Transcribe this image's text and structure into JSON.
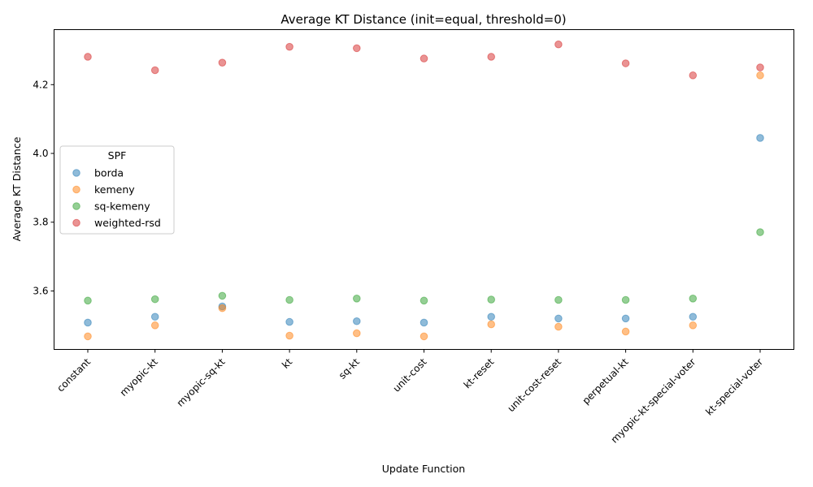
{
  "chart_data": {
    "type": "scatter",
    "title": "Average KT Distance (init=equal, threshold=0)",
    "xlabel": "Update Function",
    "ylabel": "Average KT Distance",
    "categories": [
      "constant",
      "myopic-kt",
      "myopic-sq-kt",
      "kt",
      "sq-kt",
      "unit-cost",
      "kt-reset",
      "unit-cost-reset",
      "perpetual-kt",
      "myopic-kt-special-voter",
      "kt-special-voter"
    ],
    "ylim": [
      3.43,
      4.36
    ],
    "yticks": [
      3.6,
      3.8,
      4.0,
      4.2
    ],
    "ytick_labels": [
      "3.6",
      "3.8",
      "4.0",
      "4.2"
    ],
    "legend": {
      "title": "SPF",
      "position": "center-left"
    },
    "series": [
      {
        "name": "borda",
        "color": "#1f77b4",
        "values": [
          3.508,
          3.525,
          3.555,
          3.51,
          3.512,
          3.508,
          3.525,
          3.52,
          3.52,
          3.525,
          4.045
        ]
      },
      {
        "name": "kemeny",
        "color": "#ff7f0e",
        "values": [
          3.468,
          3.5,
          3.55,
          3.47,
          3.477,
          3.468,
          3.503,
          3.496,
          3.482,
          3.5,
          4.227
        ]
      },
      {
        "name": "sq-kemeny",
        "color": "#2ca02c",
        "values": [
          3.572,
          3.576,
          3.586,
          3.574,
          3.578,
          3.572,
          3.575,
          3.574,
          3.574,
          3.578,
          3.771
        ]
      },
      {
        "name": "weighted-rsd",
        "color": "#d62728",
        "values": [
          4.281,
          4.242,
          4.264,
          4.31,
          4.306,
          4.276,
          4.281,
          4.317,
          4.262,
          4.227,
          4.25
        ]
      }
    ]
  }
}
